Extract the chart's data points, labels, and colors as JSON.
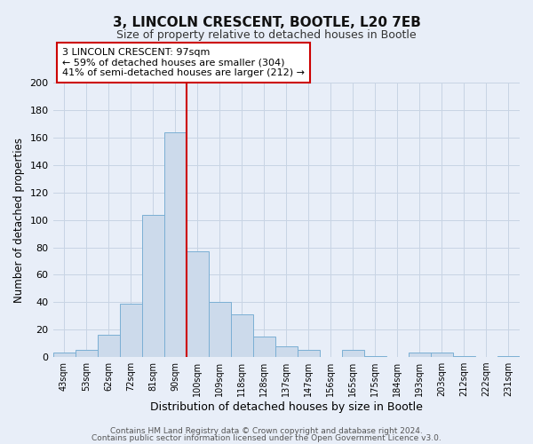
{
  "title1": "3, LINCOLN CRESCENT, BOOTLE, L20 7EB",
  "title2": "Size of property relative to detached houses in Bootle",
  "xlabel": "Distribution of detached houses by size in Bootle",
  "ylabel": "Number of detached properties",
  "bin_labels": [
    "43sqm",
    "53sqm",
    "62sqm",
    "72sqm",
    "81sqm",
    "90sqm",
    "100sqm",
    "109sqm",
    "118sqm",
    "128sqm",
    "137sqm",
    "147sqm",
    "156sqm",
    "165sqm",
    "175sqm",
    "184sqm",
    "193sqm",
    "203sqm",
    "212sqm",
    "222sqm",
    "231sqm"
  ],
  "bar_heights": [
    3,
    5,
    16,
    39,
    104,
    164,
    77,
    40,
    31,
    15,
    8,
    5,
    0,
    5,
    1,
    0,
    3,
    3,
    1,
    0,
    1
  ],
  "bar_color": "#ccdaeb",
  "bar_edge_color": "#7bafd4",
  "vline_x_index": 5.5,
  "vline_color": "#cc0000",
  "annotation_text": "3 LINCOLN CRESCENT: 97sqm\n← 59% of detached houses are smaller (304)\n41% of semi-detached houses are larger (212) →",
  "annotation_box_color": "#ffffff",
  "annotation_box_edge_color": "#cc0000",
  "ylim": [
    0,
    200
  ],
  "yticks": [
    0,
    20,
    40,
    60,
    80,
    100,
    120,
    140,
    160,
    180,
    200
  ],
  "grid_color": "#c8d4e4",
  "bg_color": "#e8eef8",
  "footer1": "Contains HM Land Registry data © Crown copyright and database right 2024.",
  "footer2": "Contains public sector information licensed under the Open Government Licence v3.0."
}
